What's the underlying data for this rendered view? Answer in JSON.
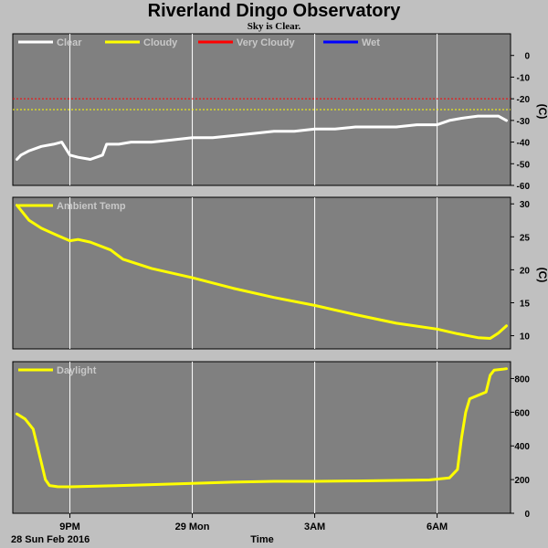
{
  "title": "Riverland Dingo Observatory",
  "subtitle": "Sky is Clear.",
  "x_axis": {
    "title": "Time",
    "date_label": "28 Sun Feb 2016",
    "ticks": [
      {
        "h": 21,
        "label": "9PM"
      },
      {
        "h": 24,
        "label": "29 Mon"
      },
      {
        "h": 27,
        "label": "3AM"
      },
      {
        "h": 30,
        "label": "6AM"
      }
    ],
    "range_h": [
      19.6,
      31.8
    ]
  },
  "colors": {
    "clear": "#ffffff",
    "cloudy": "#ffff00",
    "very_cloudy": "#ff0000",
    "wet": "#0000ff",
    "plot_bg": "#808080",
    "grid": "#ffffff"
  },
  "chart_data": [
    {
      "type": "line",
      "unit_label": "(C)",
      "ylim": [
        -60,
        10
      ],
      "yticks": [
        0,
        -10,
        -20,
        -30,
        -40,
        -50,
        -60
      ],
      "legend": [
        {
          "name": "Clear",
          "color": "#ffffff"
        },
        {
          "name": "Cloudy",
          "color": "#ffff00"
        },
        {
          "name": "Very Cloudy",
          "color": "#ff0000"
        },
        {
          "name": "Wet",
          "color": "#0000ff"
        }
      ],
      "thresholds": [
        {
          "value": -20,
          "color": "#ff0000"
        },
        {
          "value": -25,
          "color": "#ffff00"
        }
      ],
      "series": [
        {
          "name": "Clear",
          "color": "#ffffff",
          "x": [
            19.7,
            19.8,
            20.0,
            20.3,
            20.6,
            20.8,
            21.0,
            21.2,
            21.5,
            21.8,
            21.9,
            22.2,
            22.5,
            23.0,
            23.5,
            24.0,
            24.5,
            25.0,
            25.5,
            26.0,
            26.5,
            27.0,
            27.5,
            28.0,
            28.5,
            29.0,
            29.5,
            30.0,
            30.3,
            30.6,
            31.0,
            31.3,
            31.5,
            31.7
          ],
          "y": [
            -48,
            -46,
            -44,
            -42,
            -41,
            -40,
            -46,
            -47,
            -48,
            -46,
            -41,
            -41,
            -40,
            -40,
            -39,
            -38,
            -38,
            -37,
            -36,
            -35,
            -35,
            -34,
            -34,
            -33,
            -33,
            -33,
            -32,
            -32,
            -30,
            -29,
            -28,
            -28,
            -28,
            -30
          ]
        }
      ]
    },
    {
      "type": "line",
      "unit_label": "(C)",
      "ylim": [
        8,
        31
      ],
      "yticks": [
        30,
        25,
        20,
        15,
        10
      ],
      "legend": [
        {
          "name": "Ambient Temp",
          "color": "#ffff00"
        }
      ],
      "series": [
        {
          "name": "Ambient Temp",
          "color": "#ffff00",
          "x": [
            19.7,
            20.0,
            20.3,
            20.7,
            21.0,
            21.2,
            21.5,
            22.0,
            22.3,
            23.0,
            24.0,
            25.0,
            26.0,
            27.0,
            28.0,
            29.0,
            30.0,
            30.5,
            31.0,
            31.3,
            31.5,
            31.7
          ],
          "y": [
            29.8,
            27.5,
            26.3,
            25.2,
            24.4,
            24.6,
            24.2,
            23.0,
            21.6,
            20.2,
            18.8,
            17.2,
            15.8,
            14.6,
            13.2,
            11.9,
            11.0,
            10.3,
            9.7,
            9.6,
            10.4,
            11.5
          ]
        }
      ]
    },
    {
      "type": "line",
      "unit_label": "",
      "ylim": [
        0,
        900
      ],
      "yticks": [
        800,
        600,
        400,
        200,
        0
      ],
      "legend": [
        {
          "name": "Daylight",
          "color": "#ffff00"
        }
      ],
      "series": [
        {
          "name": "Daylight",
          "color": "#ffff00",
          "x": [
            19.7,
            19.9,
            20.1,
            20.2,
            20.3,
            20.4,
            20.5,
            20.7,
            21.0,
            22.0,
            23.0,
            24.0,
            25.0,
            26.0,
            27.0,
            28.0,
            29.0,
            29.8,
            30.3,
            30.5,
            30.6,
            30.7,
            30.8,
            31.0,
            31.2,
            31.3,
            31.4,
            31.6,
            31.7
          ],
          "y": [
            590,
            560,
            500,
            400,
            300,
            200,
            165,
            158,
            157,
            163,
            170,
            178,
            185,
            190,
            190,
            192,
            195,
            198,
            210,
            260,
            450,
            600,
            680,
            700,
            720,
            820,
            850,
            855,
            858
          ]
        }
      ]
    }
  ]
}
